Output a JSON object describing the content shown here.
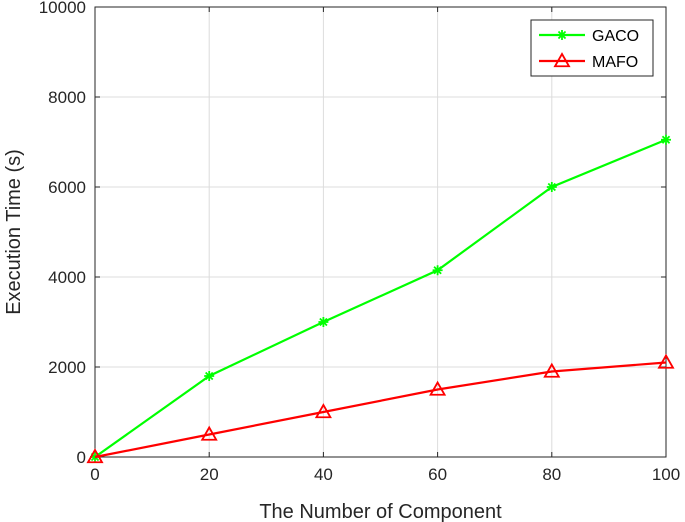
{
  "chart_data": {
    "type": "line",
    "title": "",
    "xlabel": "The Number of Component",
    "ylabel": "Execution Time (s)",
    "xlim": [
      0,
      100
    ],
    "ylim": [
      0,
      10000
    ],
    "xticks": [
      0,
      20,
      40,
      60,
      80,
      100
    ],
    "yticks": [
      0,
      2000,
      4000,
      6000,
      8000,
      10000
    ],
    "grid": true,
    "legend_position": "top-right",
    "x": [
      0,
      20,
      40,
      60,
      80,
      100
    ],
    "series": [
      {
        "name": "GACO",
        "color": "#00ff00",
        "marker": "asterisk",
        "values": [
          0,
          1800,
          3000,
          4150,
          6000,
          7050
        ]
      },
      {
        "name": "MAFO",
        "color": "#ff0000",
        "marker": "triangle",
        "values": [
          0,
          500,
          1000,
          1500,
          1900,
          2100
        ]
      }
    ]
  }
}
